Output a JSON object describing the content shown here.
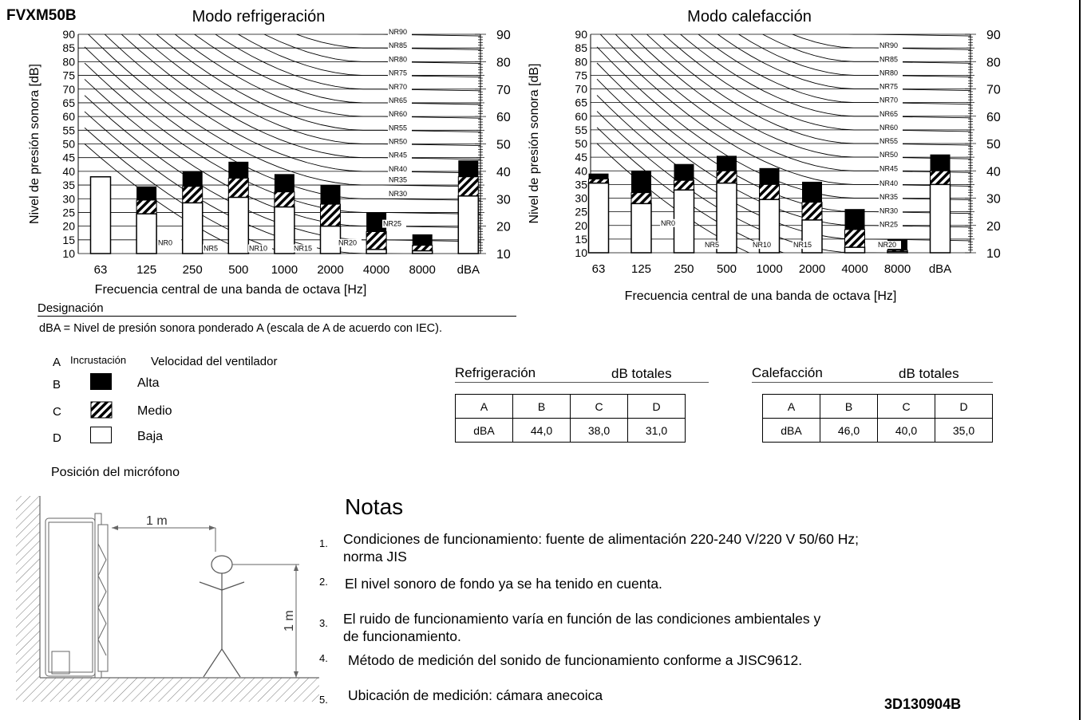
{
  "model": "FVXM50B",
  "charts_meta": {
    "ylabel": "Nivel de presión sonora [dB]",
    "xlabel": "Frecuencia central de una banda de octava [Hz]",
    "yticks": [
      10,
      15,
      20,
      25,
      30,
      35,
      40,
      45,
      50,
      55,
      60,
      65,
      70,
      75,
      80,
      85,
      90
    ],
    "right_ticks": [
      10,
      20,
      30,
      40,
      50,
      60,
      70,
      80,
      90
    ],
    "nr_labels": [
      "NR0",
      "NR5",
      "NR10",
      "NR15",
      "NR20",
      "NR25",
      "NR30",
      "NR35",
      "NR40",
      "NR45",
      "NR50",
      "NR55",
      "NR60",
      "NR65",
      "NR70",
      "NR75",
      "NR80",
      "NR85",
      "NR90"
    ]
  },
  "chart_data": [
    {
      "type": "bar",
      "title": "Modo refrigeración",
      "xlabel": "Frecuencia central de una banda de octava [Hz]",
      "ylabel": "Nivel de presión sonora [dB]",
      "ylim": [
        10,
        90
      ],
      "categories": [
        "63",
        "125",
        "250",
        "500",
        "1000",
        "2000",
        "4000",
        "8000",
        "dBA"
      ],
      "series": [
        {
          "name": "Alta",
          "values": [
            38,
            34.5,
            40,
            43.5,
            39,
            35,
            25,
            17,
            44
          ]
        },
        {
          "name": "Medio",
          "values": [
            38,
            29.5,
            34.5,
            37.5,
            32.5,
            28,
            18,
            13,
            38
          ]
        },
        {
          "name": "Baja",
          "values": [
            38,
            24.5,
            28.5,
            30.5,
            27,
            20,
            11.5,
            11,
            31
          ]
        }
      ],
      "nr_label_positions": [
        "NR0",
        "NR5",
        "NR10",
        "NR15",
        "NR20",
        "NR25",
        "NR30",
        "NR35",
        "NR40",
        "NR45",
        "NR50",
        "NR55",
        "NR60",
        "NR65",
        "NR70",
        "NR75",
        "NR80",
        "NR85",
        "NR90"
      ]
    },
    {
      "type": "bar",
      "title": "Modo calefacción",
      "xlabel": "Frecuencia central de una banda de octava [Hz]",
      "ylabel": "Nivel de presión sonora [dB]",
      "ylim": [
        10,
        90
      ],
      "categories": [
        "63",
        "125",
        "250",
        "500",
        "1000",
        "2000",
        "4000",
        "8000",
        "dBA"
      ],
      "series": [
        {
          "name": "Alta",
          "values": [
            39,
            40,
            42.5,
            45.5,
            41,
            36,
            26,
            15,
            46
          ]
        },
        {
          "name": "Medio",
          "values": [
            37,
            32,
            36.5,
            40,
            35,
            28.5,
            18.5,
            11,
            40
          ]
        },
        {
          "name": "Baja",
          "values": [
            35.5,
            28,
            33,
            35.5,
            29.5,
            22,
            12,
            10.5,
            35
          ]
        }
      ]
    }
  ],
  "designation": {
    "title": "Designación",
    "text": "dBA = Nivel de presión sonora ponderado A (escala de A de acuerdo con IEC)."
  },
  "legend": {
    "col_a": "A",
    "col_incrust": "Incrustación",
    "col_speed": "Velocidad del ventilador",
    "rows": [
      {
        "letter": "B",
        "label": "Alta"
      },
      {
        "letter": "C",
        "label": "Medio"
      },
      {
        "letter": "D",
        "label": "Baja"
      }
    ]
  },
  "summary": [
    {
      "title": "Refrigeración",
      "total": "dB totales",
      "head": [
        "A",
        "B",
        "C",
        "D"
      ],
      "row": [
        "dBA",
        "44,0",
        "38,0",
        "31,0"
      ]
    },
    {
      "title": "Calefacción",
      "total": "dB totales",
      "head": [
        "A",
        "B",
        "C",
        "D"
      ],
      "row": [
        "dBA",
        "46,0",
        "40,0",
        "35,0"
      ]
    }
  ],
  "mic": {
    "title": "Posición del micrófono",
    "dist_h": "1 m",
    "dist_v": "1 m"
  },
  "notes": {
    "title": "Notas",
    "items": [
      {
        "num": "1.",
        "text": "Condiciones de funcionamiento: fuente de alimentación 220-240 V/220 V 50/60 Hz;",
        "text2": "norma JIS"
      },
      {
        "num": "2.",
        "text": "El nivel sonoro de fondo ya se ha tenido en cuenta.",
        "text2": ""
      },
      {
        "num": "3.",
        "text": "El ruido de funcionamiento varía en función de las condiciones ambientales y",
        "text2": "de funcionamiento."
      },
      {
        "num": "4.",
        "text": "Método de medición del sonido de funcionamiento conforme a JISC9612.",
        "text2": ""
      },
      {
        "num": "5.",
        "text": "Ubicación de medición: cámara anecoica",
        "text2": ""
      }
    ]
  },
  "doc_code": "3D130904B",
  "colors": {
    "fill_high": "#000000",
    "fill_low": "#ffffff",
    "stroke": "#000000"
  }
}
